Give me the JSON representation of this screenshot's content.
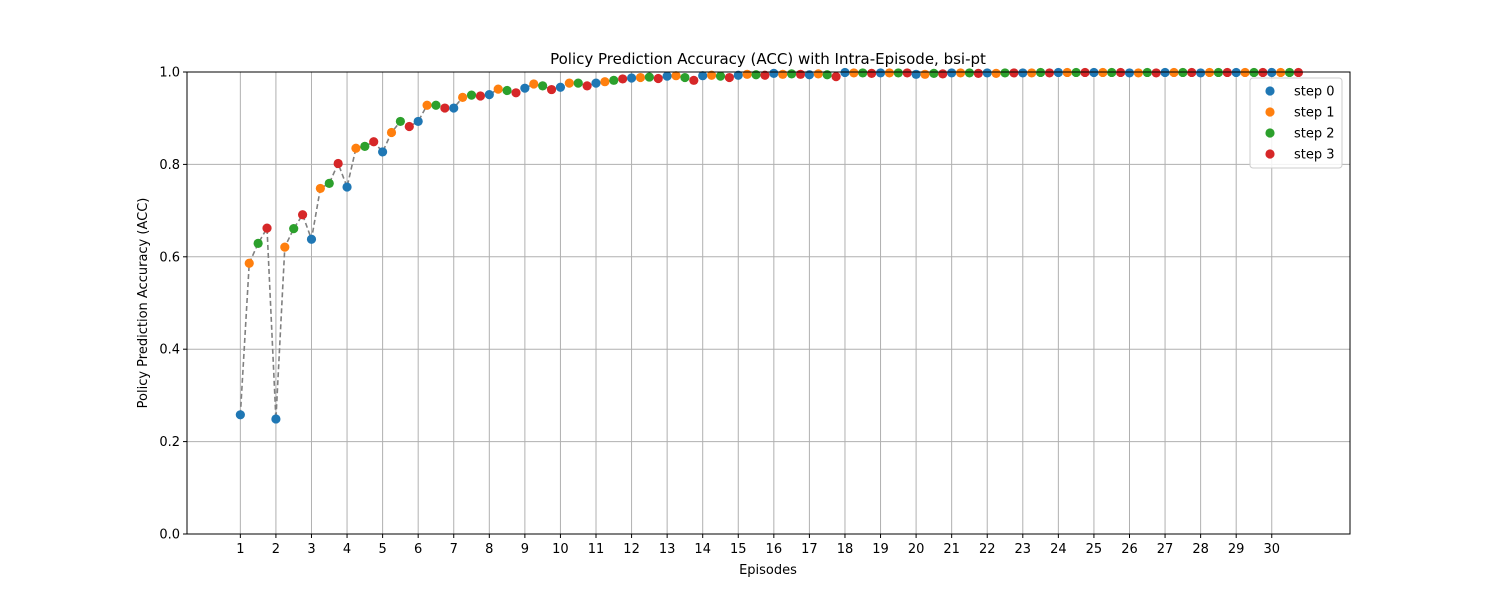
{
  "chart_data": {
    "type": "scatter",
    "title": "Policy Prediction Accuracy (ACC) with Intra-Episode, bsi-pt",
    "xlabel": "Episodes",
    "ylabel": "Policy Prediction Accuracy (ACC)",
    "ylim": [
      0,
      1
    ],
    "xlim": [
      -0.5,
      32.2
    ],
    "x_ticks": [
      "1",
      "2",
      "3",
      "4",
      "5",
      "6",
      "7",
      "8",
      "9",
      "10",
      "11",
      "12",
      "13",
      "14",
      "15",
      "16",
      "17",
      "18",
      "19",
      "20",
      "21",
      "22",
      "23",
      "24",
      "25",
      "26",
      "27",
      "28",
      "29",
      "30"
    ],
    "y_ticks": [
      "0.0",
      "0.2",
      "0.4",
      "0.6",
      "0.8",
      "1.0"
    ],
    "grid": true,
    "legend_position": "top-right",
    "connector_color": "#808080",
    "series": [
      {
        "name": "step 0",
        "color": "#1f77b4",
        "values": [
          0.258,
          0.249,
          0.638,
          0.751,
          0.827,
          0.893,
          0.922,
          0.951,
          0.965,
          0.967,
          0.976,
          0.987,
          0.991,
          0.992,
          0.993,
          0.997,
          0.994,
          0.999,
          0.998,
          0.995,
          0.998,
          0.998,
          0.998,
          0.999,
          0.999,
          0.998,
          0.999,
          0.998,
          0.999,
          0.999
        ]
      },
      {
        "name": "step 1",
        "color": "#ff7f0e",
        "values": [
          0.586,
          0.621,
          0.748,
          0.835,
          0.869,
          0.928,
          0.945,
          0.963,
          0.974,
          0.976,
          0.979,
          0.988,
          0.992,
          0.993,
          0.995,
          0.995,
          0.996,
          0.998,
          0.998,
          0.995,
          0.998,
          0.997,
          0.998,
          0.999,
          0.999,
          0.998,
          0.999,
          0.999,
          0.999,
          0.999
        ]
      },
      {
        "name": "step 2",
        "color": "#2ca02c",
        "values": [
          0.629,
          0.661,
          0.759,
          0.839,
          0.893,
          0.928,
          0.95,
          0.96,
          0.97,
          0.976,
          0.982,
          0.989,
          0.988,
          0.991,
          0.994,
          0.996,
          0.994,
          0.998,
          0.998,
          0.997,
          0.998,
          0.998,
          0.999,
          0.999,
          0.999,
          0.999,
          0.999,
          0.999,
          0.999,
          0.999
        ]
      },
      {
        "name": "step 3",
        "color": "#d62728",
        "values": [
          0.662,
          0.691,
          0.802,
          0.849,
          0.882,
          0.922,
          0.948,
          0.955,
          0.962,
          0.97,
          0.985,
          0.986,
          0.982,
          0.988,
          0.993,
          0.995,
          0.99,
          0.997,
          0.998,
          0.996,
          0.997,
          0.998,
          0.998,
          0.999,
          0.999,
          0.998,
          0.999,
          0.999,
          0.999,
          0.999
        ]
      }
    ]
  }
}
